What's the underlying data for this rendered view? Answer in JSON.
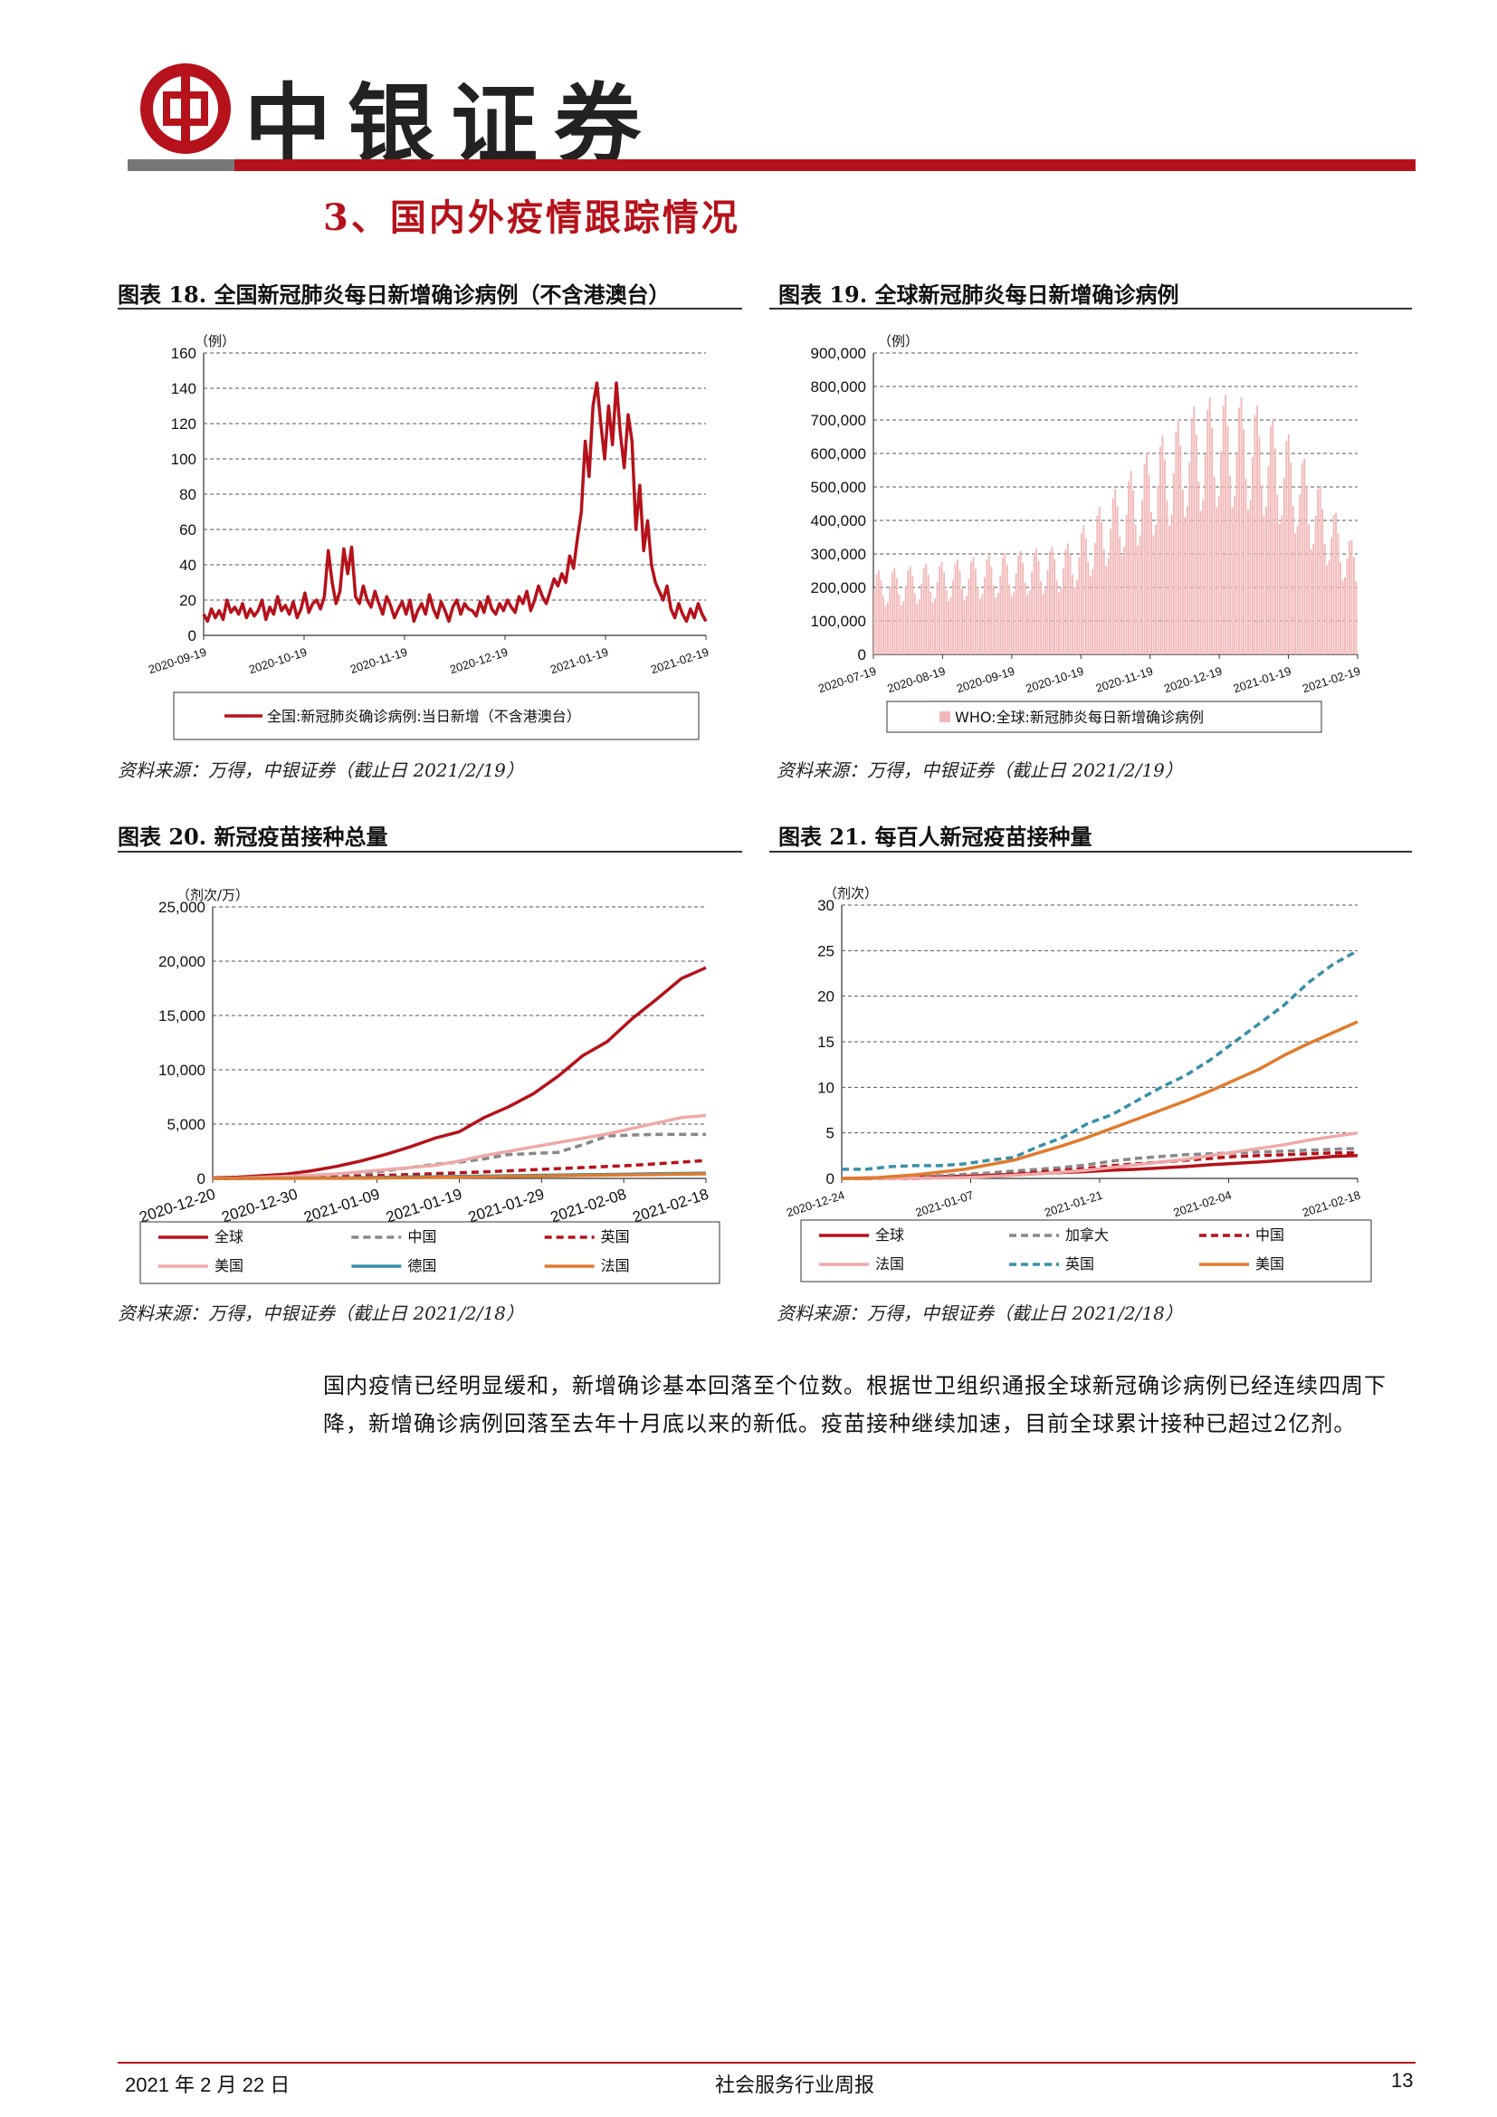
{
  "header": {
    "logo_text": "中银证券",
    "section_title": "3、国内外疫情跟踪情况"
  },
  "colors": {
    "brand_red": "#b5121b",
    "teal": "#3a8fa8",
    "orange": "#e07b2e",
    "pink": "#f0a8a8",
    "gray": "#888888"
  },
  "figures": [
    {
      "title": "图表 18. 全国新冠肺炎每日新增确诊病例（不含港澳台）",
      "source": "资料来源：万得，中银证券（截止日 2021/2/19）",
      "chart_data": {
        "type": "line",
        "unit": "（例）",
        "ylim": [
          0,
          160
        ],
        "yticks": [
          "0",
          "20",
          "40",
          "60",
          "80",
          "100",
          "120",
          "140",
          "160"
        ],
        "xticks": [
          "2020-09-19",
          "2020-10-19",
          "2020-11-19",
          "2020-12-19",
          "2021-01-19",
          "2021-02-19"
        ],
        "series": [
          {
            "name": "全国:新冠肺炎确诊病例:当日新增（不含港澳台）",
            "values": [
              12,
              8,
              15,
              10,
              14,
              9,
              20,
              13,
              16,
              12,
              18,
              10,
              15,
              11,
              14,
              20,
              9,
              16,
              12,
              22,
              14,
              17,
              12,
              19,
              10,
              15,
              24,
              13,
              18,
              20,
              15,
              22,
              48,
              30,
              18,
              25,
              49,
              35,
              50,
              22,
              18,
              28,
              20,
              16,
              25,
              18,
              12,
              22,
              17,
              10,
              15,
              19,
              12,
              20,
              8,
              14,
              18,
              12,
              23,
              15,
              10,
              19,
              14,
              8,
              16,
              20,
              12,
              18,
              15,
              14,
              11,
              19,
              13,
              22,
              15,
              12,
              18,
              14,
              20,
              16,
              13,
              22,
              18,
              25,
              14,
              20,
              28,
              22,
              18,
              25,
              32,
              28,
              35,
              30,
              45,
              38,
              55,
              70,
              110,
              90,
              130,
              143,
              120,
              100,
              130,
              108,
              143,
              115,
              95,
              125,
              110,
              60,
              85,
              48,
              65,
              40,
              30,
              25,
              20,
              28,
              15,
              10,
              18,
              12,
              8,
              15,
              10,
              18,
              12,
              8
            ]
          }
        ],
        "grid": "y-dashed",
        "legend": "bottom"
      }
    },
    {
      "title": "图表 19. 全球新冠肺炎每日新增确诊病例",
      "source": "资料来源：万得，中银证券（截止日 2021/2/19）",
      "chart_data": {
        "type": "bar",
        "unit": "（例）",
        "ylim": [
          0,
          900000
        ],
        "yticks": [
          "0",
          "100,000",
          "200,000",
          "300,000",
          "400,000",
          "500,000",
          "600,000",
          "700,000",
          "800,000",
          "900,000"
        ],
        "xticks": [
          "2020-07-19",
          "2020-08-19",
          "2020-09-19",
          "2020-10-19",
          "2020-11-19",
          "2020-12-19",
          "2021-01-19",
          "2021-02-19"
        ],
        "series": [
          {
            "name": "WHO:全球:新冠肺炎每日新增确诊病例"
          }
        ],
        "shape": "weekly-oscillating, rising from ~250,000 (Jul) to ~800,000 peak (Jan), falling to ~350,000 (Feb)",
        "legend": "bottom"
      }
    },
    {
      "title": "图表 20. 新冠疫苗接种总量",
      "source": "资料来源：万得，中银证券（截止日 2021/2/18）",
      "chart_data": {
        "type": "line",
        "unit": "（剂次/万）",
        "ylim": [
          0,
          25000
        ],
        "yticks": [
          "0",
          "5,000",
          "10,000",
          "15,000",
          "20,000",
          "25,000"
        ],
        "xticks": [
          "2020-12-20",
          "2020-12-30",
          "2021-01-09",
          "2021-01-19",
          "2021-01-29",
          "2021-02-08",
          "2021-02-18"
        ],
        "series": [
          {
            "name": "全球",
            "values": [
              50,
              120,
              250,
              400,
              700,
              1100,
              1600,
              2200,
              2900,
              3700,
              4300,
              5600,
              6600,
              7800,
              9400,
              11300,
              12600,
              14700,
              16500,
              18400,
              19400
            ]
          },
          {
            "name": "中国",
            "values": [
              0,
              0,
              0,
              100,
              150,
              200,
              300,
              700,
              1000,
              1300,
              1500,
              1800,
              2200,
              2300,
              2400,
              3100,
              3900,
              4000,
              4050,
              4050,
              4050
            ]
          },
          {
            "name": "英国",
            "values": [
              0,
              10,
              30,
              60,
              90,
              130,
              200,
              280,
              360,
              440,
              520,
              600,
              700,
              800,
              900,
              1000,
              1100,
              1200,
              1350,
              1500,
              1650
            ]
          },
          {
            "name": "美国",
            "values": [
              0,
              30,
              100,
              180,
              290,
              420,
              600,
              800,
              1000,
              1200,
              1600,
              2100,
              2500,
              2900,
              3300,
              3700,
              4100,
              4600,
              5100,
              5600,
              5800
            ]
          },
          {
            "name": "德国",
            "values": [
              0,
              0,
              5,
              15,
              30,
              50,
              70,
              100,
              130,
              160,
              190,
              220,
              250,
              280,
              310,
              340,
              370,
              400,
              430,
              460,
              490
            ]
          },
          {
            "name": "法国",
            "values": [
              0,
              0,
              0,
              2,
              5,
              10,
              20,
              40,
              60,
              90,
              120,
              150,
              180,
              210,
              240,
              270,
              300,
              330,
              360,
              390,
              420
            ]
          }
        ],
        "grid": "y-dashed",
        "legend": "bottom"
      }
    },
    {
      "title": "图表 21. 每百人新冠疫苗接种量",
      "source": "资料来源：万得，中银证券（截止日 2021/2/18）",
      "chart_data": {
        "type": "line",
        "unit": "（剂次）",
        "ylim": [
          0,
          30
        ],
        "yticks": [
          "0",
          "5",
          "10",
          "15",
          "20",
          "25",
          "30"
        ],
        "xticks": [
          "2020-12-24",
          "2021-01-07",
          "2021-01-21",
          "2021-02-04",
          "2021-02-18"
        ],
        "series": [
          {
            "name": "全球",
            "values": [
              0,
              0.05,
              0.1,
              0.15,
              0.2,
              0.25,
              0.35,
              0.45,
              0.55,
              0.65,
              0.75,
              0.9,
              1.0,
              1.15,
              1.3,
              1.5,
              1.65,
              1.8,
              2.0,
              2.2,
              2.4,
              2.5
            ]
          },
          {
            "name": "加拿大",
            "values": [
              0,
              0.05,
              0.1,
              0.2,
              0.3,
              0.45,
              0.6,
              0.8,
              1.0,
              1.2,
              1.5,
              1.9,
              2.2,
              2.4,
              2.6,
              2.7,
              2.8,
              2.9,
              3.0,
              3.1,
              3.2,
              3.3
            ]
          },
          {
            "name": "中国",
            "values": [
              0,
              0,
              0,
              0,
              0.1,
              0.2,
              0.3,
              0.5,
              0.7,
              0.9,
              1.1,
              1.4,
              1.6,
              1.8,
              2.0,
              2.2,
              2.4,
              2.5,
              2.6,
              2.7,
              2.8,
              2.8
            ]
          },
          {
            "name": "法国",
            "values": [
              0,
              0,
              0,
              0.02,
              0.05,
              0.1,
              0.2,
              0.35,
              0.5,
              0.7,
              0.9,
              1.2,
              1.5,
              1.8,
              2.1,
              2.5,
              2.9,
              3.3,
              3.7,
              4.2,
              4.6,
              5.0
            ]
          },
          {
            "name": "英国",
            "values": [
              1.0,
              1.0,
              1.3,
              1.4,
              1.4,
              1.6,
              2.0,
              2.3,
              3.5,
              4.5,
              6.0,
              7.0,
              8.5,
              10.0,
              11.3,
              13.0,
              15.0,
              17.0,
              19.0,
              21.5,
              23.5,
              25.0
            ]
          },
          {
            "name": "美国",
            "values": [
              0,
              0,
              0.2,
              0.4,
              0.7,
              1.0,
              1.5,
              2.0,
              2.8,
              3.6,
              4.5,
              5.5,
              6.5,
              7.5,
              8.5,
              9.6,
              10.8,
              12.0,
              13.5,
              14.8,
              16.0,
              17.2
            ]
          }
        ],
        "grid": "y-dashed",
        "legend": "bottom"
      }
    }
  ],
  "body_text": "国内疫情已经明显缓和，新增确诊基本回落至个位数。根据世卫组织通报全球新冠确诊病例已经连续四周下降，新增确诊病例回落至去年十月底以来的新低。疫苗接种继续加速，目前全球累计接种已超过2亿剂。",
  "footer": {
    "date": "2021 年 2 月 22 日",
    "title": "社会服务行业周报",
    "page": "13"
  }
}
